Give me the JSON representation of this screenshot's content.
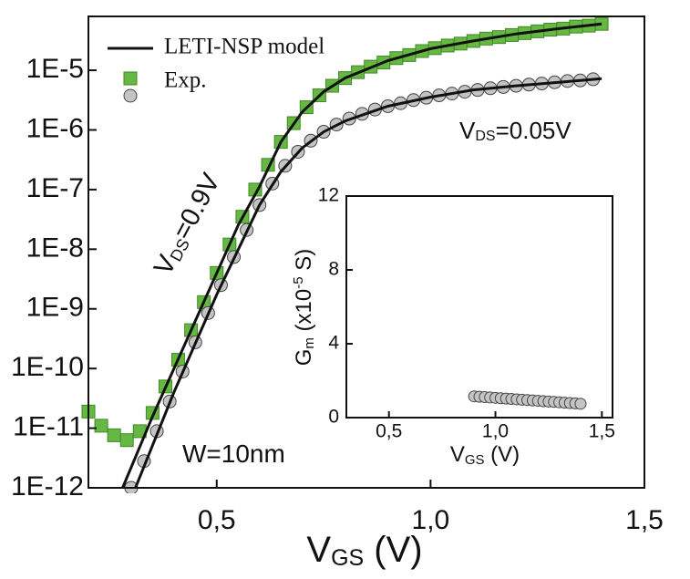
{
  "chart_data": [
    {
      "type": "line",
      "xlabel": [
        "V",
        "GS",
        " (V)"
      ],
      "xlim": [
        0.2,
        1.5
      ],
      "xticks": [
        {
          "value": 0.5,
          "label": "0,5"
        },
        {
          "value": 1.0,
          "label": "1,0"
        },
        {
          "value": 1.5,
          "label": "1,5"
        }
      ],
      "ylim": [
        1e-12,
        8e-05
      ],
      "ylog": true,
      "yticks": [
        {
          "value": 1e-05,
          "label": "1E-5"
        },
        {
          "value": 1e-06,
          "label": "1E-6"
        },
        {
          "value": 1e-07,
          "label": "1E-7"
        },
        {
          "value": 1e-08,
          "label": "1E-8"
        },
        {
          "value": 1e-09,
          "label": "1E-9"
        },
        {
          "value": 1e-10,
          "label": "1E-10"
        },
        {
          "value": 1e-11,
          "label": "1E-11"
        },
        {
          "value": 1e-12,
          "label": "1E-12"
        }
      ],
      "grid": false,
      "series": [
        {
          "name": "LETI-NSP model",
          "color": "#111111",
          "x": [
            0.28,
            0.35,
            0.45,
            0.55,
            0.6,
            0.65,
            0.7,
            0.75,
            0.8,
            0.9,
            1.0,
            1.1,
            1.2,
            1.3,
            1.4
          ],
          "values": [
            1e-12,
            1.58e-11,
            6.3e-10,
            2.5e-08,
            1.12e-07,
            6.3e-07,
            2e-06,
            4.37e-06,
            7.4e-06,
            1.45e-05,
            2.3e-05,
            3.1e-05,
            4.07e-05,
            5e-05,
            6e-05
          ]
        },
        {
          "color": "#111111",
          "x": [
            0.31,
            0.4,
            0.5,
            0.6,
            0.65,
            0.7,
            0.75,
            0.8,
            0.9,
            1.0,
            1.1,
            1.2,
            1.3,
            1.4
          ],
          "values": [
            1e-12,
            3.98e-11,
            1.74e-09,
            5.5e-08,
            2e-07,
            5e-07,
            9.3e-07,
            1.41e-06,
            2.5e-06,
            3.55e-06,
            4.68e-06,
            5.5e-06,
            6.3e-06,
            7.24e-06
          ]
        },
        {
          "name": "Exp.",
          "color": "#66b843",
          "marker": "square",
          "x": [
            0.2,
            0.23,
            0.26,
            0.29,
            0.32,
            0.35,
            0.38,
            0.41,
            0.44,
            0.47,
            0.5,
            0.53,
            0.56,
            0.59,
            0.62,
            0.65,
            0.68,
            0.71,
            0.74,
            0.77,
            0.8,
            0.83,
            0.86,
            0.89,
            0.92,
            0.95,
            0.98,
            1.01,
            1.04,
            1.07,
            1.1,
            1.13,
            1.16,
            1.19,
            1.22,
            1.25,
            1.28,
            1.31,
            1.34,
            1.37,
            1.4
          ],
          "values": [
            1.9e-11,
            1.1e-11,
            7.6e-12,
            6.3e-12,
            8.9e-12,
            1.8e-11,
            5e-11,
            1.4e-10,
            4.4e-10,
            1.3e-09,
            4e-09,
            1.2e-08,
            3.5e-08,
            1e-07,
            2.6e-07,
            6.3e-07,
            1.3e-06,
            2.4e-06,
            3.8e-06,
            5.5e-06,
            7.4e-06,
            9.3e-06,
            1.15e-05,
            1.35e-05,
            1.6e-05,
            1.8e-05,
            2.1e-05,
            2.35e-05,
            2.6e-05,
            2.8e-05,
            3.1e-05,
            3.4e-05,
            3.6e-05,
            3.9e-05,
            4.2e-05,
            4.5e-05,
            4.8e-05,
            5e-05,
            5.4e-05,
            5.6e-05,
            6e-05
          ]
        },
        {
          "color": "#c4c4c4",
          "marker": "circle",
          "x": [
            0.3,
            0.33,
            0.36,
            0.39,
            0.42,
            0.45,
            0.48,
            0.51,
            0.54,
            0.57,
            0.6,
            0.63,
            0.66,
            0.69,
            0.72,
            0.75,
            0.78,
            0.81,
            0.84,
            0.87,
            0.9,
            0.93,
            0.96,
            0.99,
            1.02,
            1.05,
            1.08,
            1.11,
            1.14,
            1.17,
            1.2,
            1.23,
            1.26,
            1.29,
            1.32,
            1.35,
            1.38
          ],
          "values": [
            1e-12,
            2.8e-12,
            8.9e-12,
            2.8e-11,
            8.9e-11,
            2.75e-10,
            8.5e-10,
            2.5e-09,
            7.4e-09,
            2.1e-08,
            5.5e-08,
            1.26e-07,
            2.5e-07,
            4.3e-07,
            6.6e-07,
            9.3e-07,
            1.23e-06,
            1.55e-06,
            1.86e-06,
            2.2e-06,
            2.5e-06,
            2.8e-06,
            3.16e-06,
            3.47e-06,
            3.8e-06,
            4.07e-06,
            4.37e-06,
            4.68e-06,
            5e-06,
            5.25e-06,
            5.5e-06,
            5.75e-06,
            6e-06,
            6.3e-06,
            6.6e-06,
            6.76e-06,
            7.08e-06
          ]
        }
      ],
      "annotations": [
        {
          "parts": [
            "V",
            "DS",
            "=0.9V"
          ]
        },
        {
          "parts": [
            "V",
            "DS",
            "=0.05V"
          ]
        },
        {
          "parts": [
            "W=10nm"
          ]
        }
      ]
    },
    {
      "type": "scatter",
      "xlabel": [
        "V",
        "GS",
        " (V)"
      ],
      "ylabel": [
        "G",
        "m",
        " (x10",
        "-5",
        " S)"
      ],
      "xlim": [
        0.3,
        1.55
      ],
      "xticks": [
        {
          "value": 0.5,
          "label": "0,5"
        },
        {
          "value": 1.0,
          "label": "1,0"
        },
        {
          "value": 1.5,
          "label": "1,5"
        }
      ],
      "ylim": [
        0,
        12
      ],
      "yticks": [
        0,
        4,
        8,
        12
      ],
      "series": [
        {
          "color": "#c4c4c4",
          "marker": "circle",
          "x": [
            0.9,
            0.925,
            0.95,
            0.975,
            1.0,
            1.025,
            1.05,
            1.075,
            1.1,
            1.125,
            1.15,
            1.175,
            1.2,
            1.225,
            1.25,
            1.275,
            1.3,
            1.325,
            1.35,
            1.375,
            1.4
          ],
          "values": [
            1.15,
            1.13,
            1.11,
            1.09,
            1.07,
            1.05,
            1.03,
            1.01,
            0.99,
            0.97,
            0.95,
            0.93,
            0.91,
            0.89,
            0.87,
            0.85,
            0.83,
            0.81,
            0.79,
            0.77,
            0.75
          ]
        }
      ]
    }
  ]
}
